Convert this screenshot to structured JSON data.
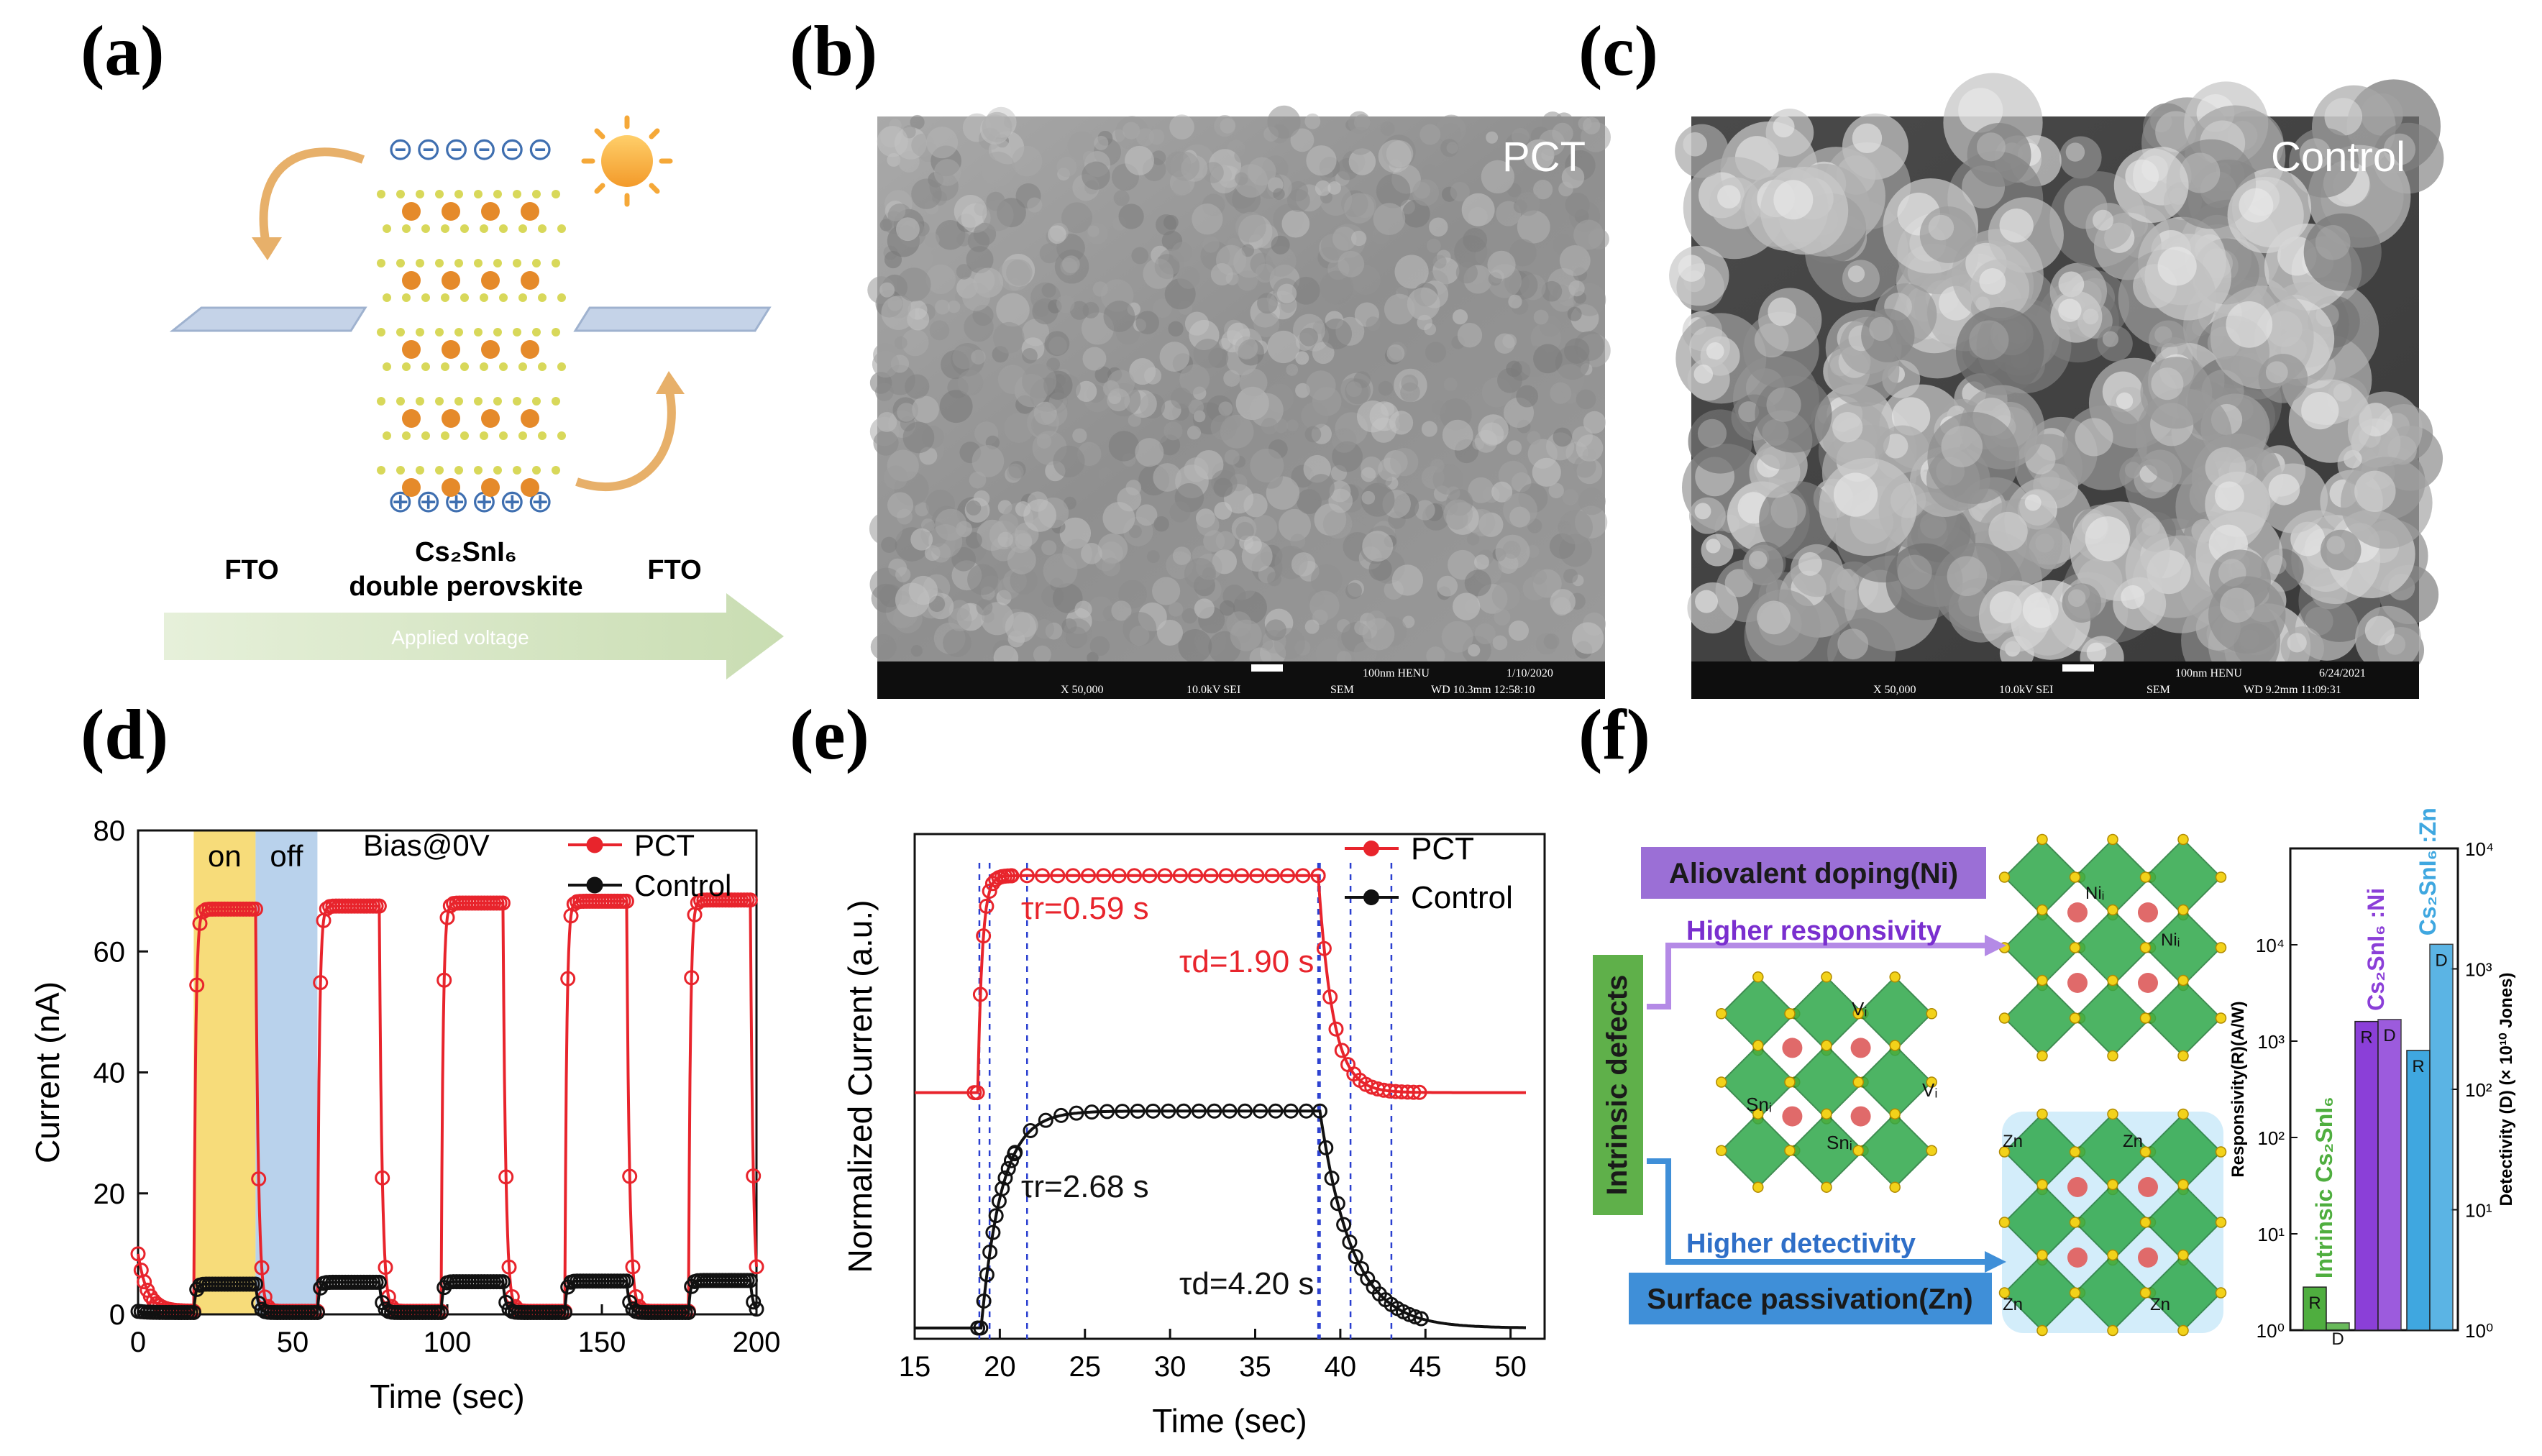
{
  "panels": {
    "a": {
      "label": "(a)",
      "left_electrode": "FTO",
      "right_electrode": "FTO",
      "material_formula": "Cs₂SnI₆",
      "material_name": "double perovskite",
      "arrow_text": "Applied voltage",
      "negative_charges": "⊝⊝⊝⊝⊝⊝",
      "positive_charges": "⊕⊕⊕⊕⊕⊕",
      "colors": {
        "electrode": "#b8c8e0",
        "arrow": "#d5e6c4",
        "charge": "#3f6fb0",
        "sun": "#f8b04a",
        "ion": "#e58a2a",
        "small_ion": "#d8d85a"
      }
    },
    "b": {
      "label": "(b)",
      "overlay": "PCT",
      "info_top": [
        "100nm HENU",
        "1/10/2020"
      ],
      "info_bottom": [
        "X 50,000",
        "10.0kV SEI",
        "SEM",
        "WD 10.3mm 12:58:10"
      ]
    },
    "c": {
      "label": "(c)",
      "overlay": "Control",
      "info_top": [
        "100nm HENU",
        "6/24/2021"
      ],
      "info_bottom": [
        "X 50,000",
        "10.0kV SEI",
        "SEM",
        "WD 9.2mm 11:09:31"
      ]
    },
    "d": {
      "label": "(d)"
    },
    "e": {
      "label": "(e)"
    },
    "f": {
      "label": "(f)",
      "boxes": {
        "doping": "Aliovalent doping(Ni)",
        "passivation": "Surface passivation(Zn)",
        "intrinsic": "Intrinsic defects",
        "responsivity": "Higher responsivity",
        "detectivity": "Higher detectivity"
      },
      "site_labels": {
        "vi_1": "Vᵢ",
        "vi_2": "Vᵢ",
        "sni_1": "Snᵢ",
        "sni_2": "Snᵢ",
        "ni_1": "Niᵢ",
        "ni_2": "Niᵢ",
        "zn_1": "Zn",
        "zn_2": "Zn",
        "zn_3": "Zn",
        "zn_4": "Zn"
      },
      "colors": {
        "doping_box": "#9b6fd6",
        "passivation_box": "#3f8fd8",
        "intrinsic_box": "#5fb04a",
        "octahedron": "#2fa84a",
        "atom": "#f2d21a",
        "sphere": "#e06a6a"
      }
    }
  },
  "chart_data": [
    {
      "id": "d",
      "type": "line",
      "xlabel": "Time (sec)",
      "ylabel": "Current (nA)",
      "xlim": [
        0,
        200
      ],
      "ylim": [
        0,
        80
      ],
      "xticks": [
        0,
        50,
        100,
        150,
        200
      ],
      "yticks": [
        0,
        20,
        40,
        60,
        80
      ],
      "annotation": "Bias@0V",
      "shaded_regions": [
        {
          "label": "on",
          "x": [
            18,
            38
          ],
          "color": "#f7dc7a"
        },
        {
          "label": "off",
          "x": [
            38,
            58
          ],
          "color": "#b9d2ec"
        }
      ],
      "cycle": {
        "period": 40,
        "first_on": 18,
        "on_duration": 20,
        "count": 5
      },
      "series": [
        {
          "name": "PCT",
          "color": "#e8242c",
          "baseline": 0.5,
          "initial": 10,
          "plateau": [
            67,
            67.5,
            68,
            68.3,
            68.5
          ]
        },
        {
          "name": "Control",
          "color": "#111111",
          "baseline": 0.3,
          "initial": 0.5,
          "plateau": [
            5,
            5.3,
            5.4,
            5.5,
            5.6
          ]
        }
      ]
    },
    {
      "id": "e",
      "type": "line",
      "xlabel": "Time (sec)",
      "ylabel": "Normalized Current (a.u.)",
      "xlim": [
        15,
        52
      ],
      "ylim": [
        0,
        1
      ],
      "xticks": [
        15,
        20,
        25,
        30,
        35,
        40,
        45,
        50
      ],
      "series": [
        {
          "name": "PCT",
          "color": "#e8242c",
          "low": 0.51,
          "high": 0.98,
          "rise_start": 18.7,
          "tau_r": 0.59,
          "fall_start": 38.7,
          "tau_d": 1.9
        },
        {
          "name": "Control",
          "color": "#111111",
          "low": 0.0,
          "high": 0.47,
          "rise_start": 18.9,
          "tau_r": 2.68,
          "fall_start": 38.8,
          "tau_d": 4.2
        }
      ],
      "annotations": [
        {
          "text": "τr=0.59 s",
          "color": "#e8242c"
        },
        {
          "text": "τd=1.90 s",
          "color": "#e8242c"
        },
        {
          "text": "τr=2.68 s",
          "color": "#111111"
        },
        {
          "text": "τd=4.20 s",
          "color": "#111111"
        }
      ],
      "markers_x": [
        18.8,
        19.4,
        38.8,
        40.6,
        21.6,
        38.7,
        43.0
      ]
    },
    {
      "id": "f",
      "type": "bar",
      "scale": "log",
      "left_axis_label": "Responsivity(R)(A/W)",
      "right_axis_label": "Detectivity (D) (× 10¹⁰ Jones)",
      "left_ylim": [
        1,
        100000
      ],
      "right_ylim": [
        1,
        10000
      ],
      "left_ticks": [
        "10⁰",
        "10¹",
        "10²",
        "10³",
        "10⁴"
      ],
      "right_ticks": [
        "10⁰",
        "10¹",
        "10²",
        "10³",
        "10⁴"
      ],
      "groups": [
        {
          "name": "Intrinsic Cs₂SnI₆",
          "color": "#4fae3f",
          "R": 2.8,
          "D": 0.85
        },
        {
          "name": "Cs₂SnI₆ :Ni",
          "color": "#8b3fd8",
          "R": 1600,
          "D": 380
        },
        {
          "name": "Cs₂SnI₆ :Zn",
          "color": "#3fa7e0",
          "R": 800,
          "D": 1600
        }
      ],
      "bar_labels": {
        "R": "R",
        "D": "D"
      }
    }
  ]
}
